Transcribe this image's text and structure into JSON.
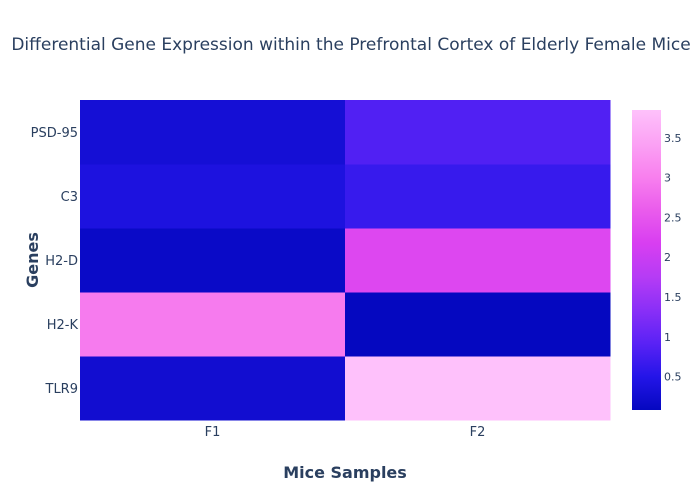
{
  "chart_data": {
    "type": "heatmap",
    "title": "Differential Gene Expression within the Prefrontal Cortex of Elderly Female Mice",
    "xlabel": "Mice Samples",
    "ylabel": "Genes",
    "x": [
      "F1",
      "F2"
    ],
    "y": [
      "TLR9",
      "H2-K",
      "H2-D",
      "C3",
      "PSD-95"
    ],
    "z": [
      [
        0.25,
        3.85
      ],
      [
        2.95,
        0.08
      ],
      [
        0.15,
        2.3
      ],
      [
        0.4,
        0.65
      ],
      [
        0.3,
        0.85
      ]
    ],
    "zmin": 0.08,
    "zmax": 3.85,
    "colorscale": [
      "#0508c0",
      "#2415e8",
      "#5a22f5",
      "#8a2ff7",
      "#b63cf5",
      "#d83ef1",
      "#ea5cec",
      "#f880ee",
      "#fba2f4",
      "#fec1fb"
    ],
    "colorbar": {
      "ticks": [
        0.5,
        1,
        1.5,
        2,
        2.5,
        3,
        3.5
      ],
      "tick_labels": [
        "0.5",
        "1",
        "1.5",
        "2",
        "2.5",
        "3",
        "3.5"
      ]
    },
    "grid": false
  }
}
